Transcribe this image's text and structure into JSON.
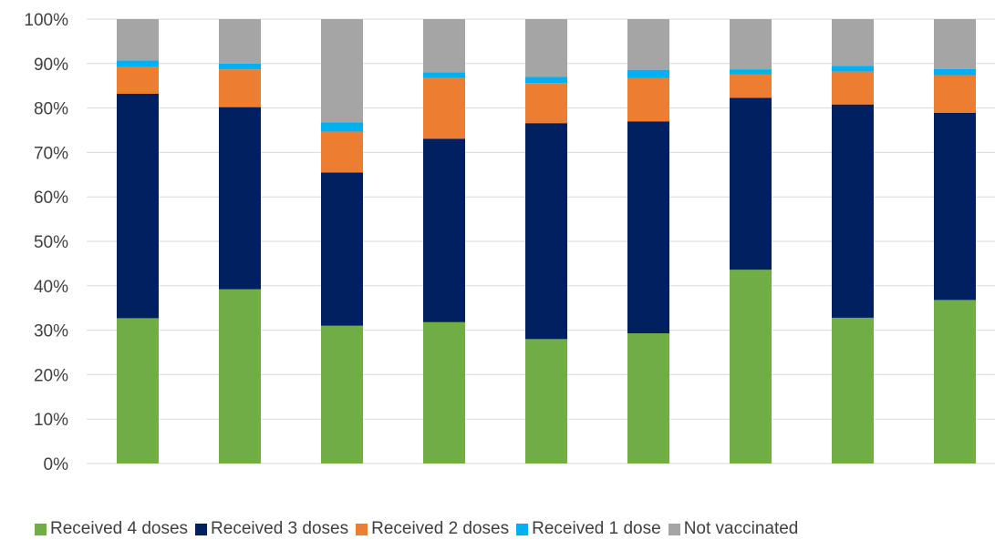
{
  "chart_data": {
    "type": "bar",
    "stacked": true,
    "title": "",
    "xlabel": "",
    "ylabel": "",
    "ylim": [
      0,
      100
    ],
    "y_ticks": [
      "0%",
      "10%",
      "20%",
      "30%",
      "40%",
      "50%",
      "60%",
      "70%",
      "80%",
      "90%",
      "100%"
    ],
    "categories": [
      "",
      "",
      "",
      "",
      "",
      "",
      "",
      "",
      ""
    ],
    "grid": "horizontal",
    "legend_position": "bottom",
    "series": [
      {
        "name": "Received 4 doses",
        "color": "#70ad47",
        "values": [
          32.7,
          39.2,
          31.0,
          31.8,
          28.0,
          29.3,
          43.6,
          32.8,
          36.8
        ]
      },
      {
        "name": "Received 3 doses",
        "color": "#002060",
        "values": [
          50.5,
          41.0,
          34.5,
          41.3,
          48.6,
          47.7,
          38.7,
          48.0,
          42.1
        ]
      },
      {
        "name": "Received 2 doses",
        "color": "#ed7d31",
        "values": [
          6.0,
          8.5,
          9.2,
          13.7,
          9.0,
          9.7,
          5.3,
          7.4,
          8.5
        ]
      },
      {
        "name": "Received 1 dose",
        "color": "#00b0f0",
        "values": [
          1.5,
          1.3,
          2.1,
          1.2,
          1.4,
          1.9,
          1.1,
          1.3,
          1.4
        ]
      },
      {
        "name": "Not vaccinated",
        "color": "#a5a5a5",
        "values": [
          9.3,
          10.0,
          23.2,
          12.0,
          13.0,
          11.4,
          11.3,
          10.5,
          11.2
        ]
      }
    ]
  }
}
